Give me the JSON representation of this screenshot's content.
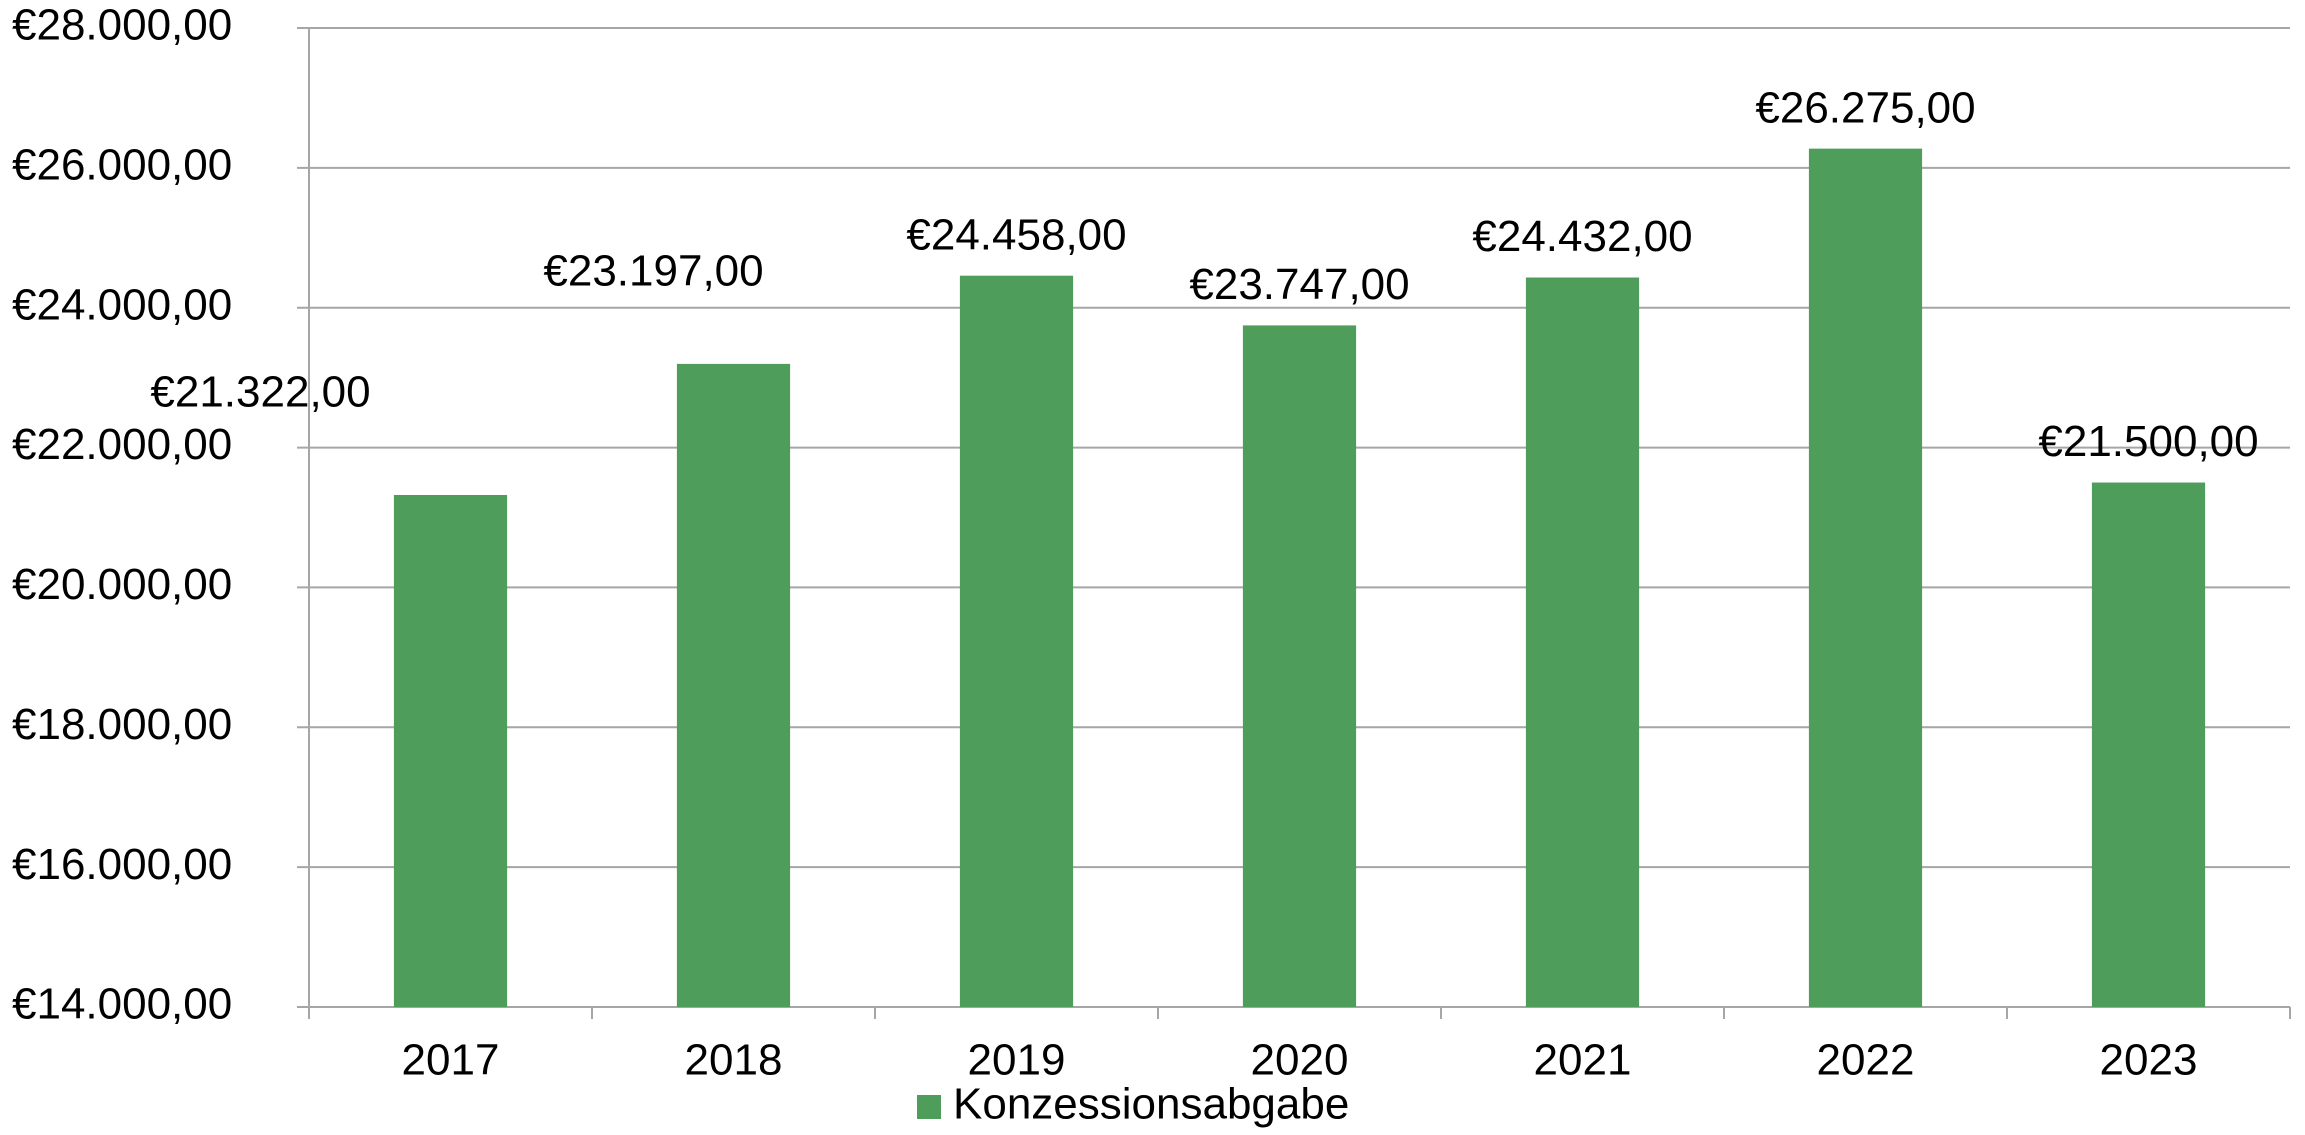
{
  "chart_data": {
    "type": "bar",
    "categories": [
      "2017",
      "2018",
      "2019",
      "2020",
      "2021",
      "2022",
      "2023"
    ],
    "series": [
      {
        "name": "Konzessionsabgabe",
        "color": "#4f9d5b",
        "values": [
          21322,
          23197,
          24458,
          23747,
          24432,
          26275,
          21500
        ],
        "value_labels": [
          "€21.322,00",
          "€23.197,00",
          "€24.458,00",
          "€23.747,00",
          "€24.432,00",
          "€26.275,00",
          "€21.500,00"
        ]
      }
    ],
    "ylim": [
      14000,
      28000
    ],
    "yticks": [
      {
        "value": 14000,
        "label": "€14.000,00"
      },
      {
        "value": 16000,
        "label": "€16.000,00"
      },
      {
        "value": 18000,
        "label": "€18.000,00"
      },
      {
        "value": 20000,
        "label": "€20.000,00"
      },
      {
        "value": 22000,
        "label": "€22.000,00"
      },
      {
        "value": 24000,
        "label": "€24.000,00"
      },
      {
        "value": 26000,
        "label": "€26.000,00"
      },
      {
        "value": 28000,
        "label": "€28.000,00"
      }
    ],
    "grid": true,
    "legend": "bottom"
  }
}
